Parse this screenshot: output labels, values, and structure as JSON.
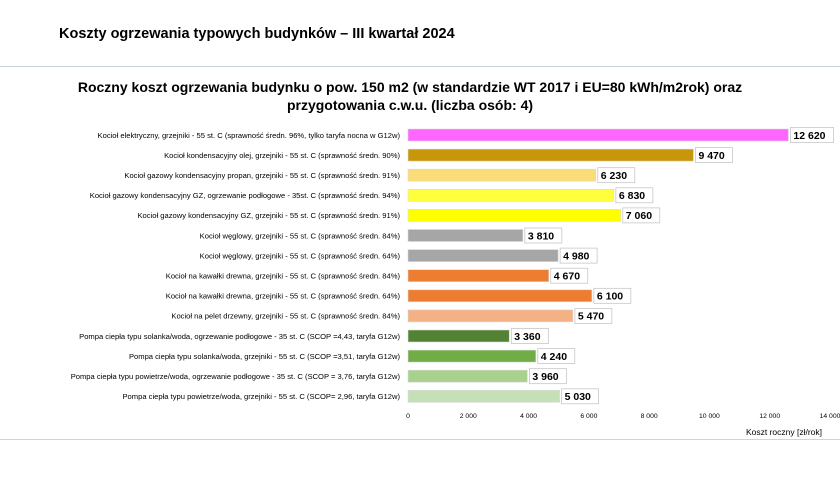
{
  "slide": {
    "title": "Koszty ogrzewania typowych budynków – III kwartał 2024"
  },
  "chart_data": {
    "type": "bar",
    "orientation": "horizontal",
    "title": "Roczny koszt ogrzewania budynku  o pow. 150 m2 (w standardzie WT 2017 i EU=80 kWh/m2rok) oraz przygotowania c.w.u. (liczba osób: 4)",
    "xlabel": "Koszt roczny [zł/rok]",
    "ylabel": "",
    "xlim": [
      0,
      14000
    ],
    "ticks": [
      0,
      2000,
      4000,
      6000,
      8000,
      10000,
      12000,
      14000
    ],
    "tick_labels": [
      "0",
      "2 000",
      "4 000",
      "6 000",
      "8 000",
      "10 000",
      "12 000",
      "14 000"
    ],
    "grid": false,
    "legend": "none",
    "categories": [
      "Kocioł  elektryczny,  grzejniki - 55 st. C  (sprawność średn. 96%, tylko taryfa nocna w G12w)",
      "Kocioł  kondensacyjny olej,  grzejniki - 55 st. C   (sprawność średn. 90%)",
      "Kocioł gazowy kondensacyjny propan, grzejniki - 55 st. C   (sprawność średn. 91%)",
      "Kocioł gazowy kondensacyjny GZ, ogrzewanie podłogowe - 35st. C   (sprawność średn. 94%)",
      "Kocioł gazowy kondensacyjny GZ, grzejniki - 55 st. C   (sprawność średn. 91%)",
      "Kocioł węglowy,  grzejniki - 55 st. C   (sprawność średn. 84%)",
      "Kocioł węglowy,  grzejniki - 55 st. C   (sprawność średn. 64%)",
      "Kocioł na kawałki drewna, grzejniki - 55 st. C (sprawność średn. 84%)",
      "Kocioł na kawałki drewna, grzejniki - 55 st. C   (sprawność średn. 64%)",
      "Kocioł na pelet drzewny, grzejniki - 55 st. C   (sprawność średn. 84%)",
      "Pompa ciepła typu solanka/woda, ogrzewanie podłogowe - 35 st. C  (SCOP =4,43, taryfa G12w)",
      "Pompa ciepła typu solanka/woda, grzejniki - 55 st. C (SCOP =3,51, taryfa G12w)",
      "Pompa ciepła typu powietrze/woda, ogrzewanie podłogowe - 35 st. C (SCOP = 3,76, taryfa G12w)",
      "Pompa ciepła typu powietrze/woda, grzejniki - 55 st. C (SCOP= 2,96, taryfa G12w)"
    ],
    "values": [
      12620,
      9470,
      6230,
      6830,
      7060,
      3810,
      4980,
      4670,
      6100,
      5470,
      3360,
      4240,
      3960,
      5030
    ],
    "value_labels": [
      "12 620",
      "9 470",
      "6 230",
      "6 830",
      "7 060",
      "3 810",
      "4 980",
      "4 670",
      "6 100",
      "5 470",
      "3 360",
      "4 240",
      "3 960",
      "5 030"
    ],
    "colors": [
      "#ff66ff",
      "#c8960a",
      "#fadc78",
      "#ffff3c",
      "#ffff00",
      "#a6a6a6",
      "#a6a6a6",
      "#ed7d31",
      "#ed7d31",
      "#f4b183",
      "#548235",
      "#70ad47",
      "#a9d18e",
      "#c5e0b4"
    ]
  }
}
